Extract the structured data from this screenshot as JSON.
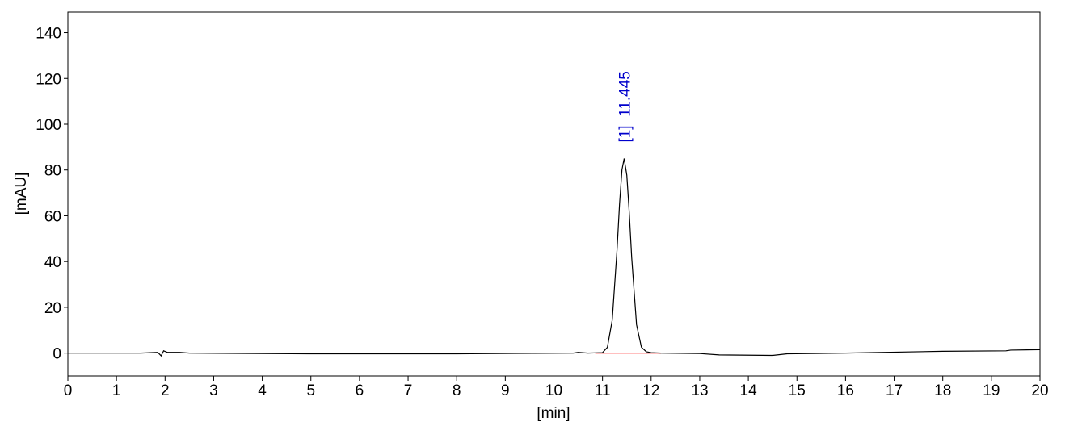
{
  "chart_data": {
    "type": "line",
    "xlabel": "[min]",
    "ylabel": "[mAU]",
    "xlim": [
      0,
      20
    ],
    "ylim": [
      -10,
      149
    ],
    "xticks": [
      0,
      1,
      2,
      3,
      4,
      5,
      6,
      7,
      8,
      9,
      10,
      11,
      12,
      13,
      14,
      15,
      16,
      17,
      18,
      19,
      20
    ],
    "yticks": [
      0,
      20,
      40,
      60,
      80,
      100,
      120,
      140
    ],
    "color": "#000000",
    "x": [
      0,
      1.5,
      1.85,
      1.92,
      1.97,
      2.05,
      2.3,
      2.5,
      5,
      8,
      10.4,
      10.5,
      10.7,
      11.0,
      11.1,
      11.2,
      11.3,
      11.35,
      11.4,
      11.445,
      11.5,
      11.55,
      11.6,
      11.7,
      11.8,
      11.9,
      12.0,
      12.2,
      13,
      13.4,
      14.5,
      14.8,
      16,
      18,
      19.3,
      19.4,
      20
    ],
    "values": [
      0,
      0,
      0.3,
      -1.2,
      1.0,
      0.3,
      0.3,
      0,
      -0.3,
      -0.3,
      0,
      0.3,
      0,
      0.2,
      2.5,
      14.4,
      45.6,
      65.1,
      80.1,
      85,
      77.7,
      61.4,
      41.8,
      12.4,
      2.6,
      0.6,
      0.2,
      0,
      -0.2,
      -0.8,
      -1,
      -0.3,
      0,
      0.8,
      1,
      1.3,
      1.5
    ],
    "integration_baseline": {
      "x": [
        10.85,
        12.2
      ],
      "values": [
        0,
        0
      ],
      "color": "#ff0000"
    },
    "annotations": [
      {
        "text": "[1]  11.445",
        "x": 11.445,
        "y": 85,
        "color": "#0000cc"
      }
    ]
  }
}
